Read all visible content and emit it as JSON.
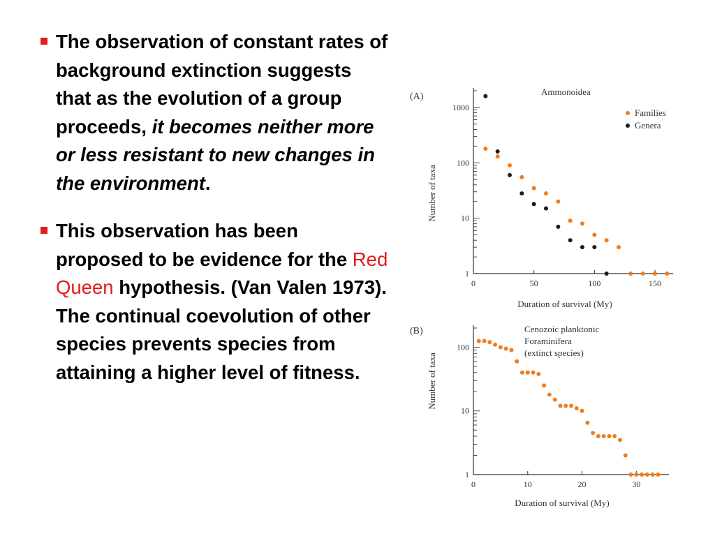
{
  "bullets": [
    {
      "parts": [
        {
          "text": "The observation of constant rates of  background extinction suggests that as the evolution of a group proceeds, "
        },
        {
          "text": "it becomes neither more or less resistant to new changes in the environment",
          "italic": true
        },
        {
          "text": "."
        }
      ]
    },
    {
      "parts": [
        {
          "text": "This observation has been proposed to be evidence for the "
        },
        {
          "text": "Red Queen",
          "color": "#e31b1b",
          "bold": false
        },
        {
          "text": " hypothesis. (Van Valen 1973).  The continual coevolution of other species prevents species from attaining a higher level of fitness."
        }
      ]
    }
  ],
  "chart_data": [
    {
      "type": "scatter",
      "panel_label": "(A)",
      "title": "Ammonoidea",
      "xlabel": "Duration of survival (My)",
      "ylabel": "Number of taxa",
      "xlim": [
        0,
        165
      ],
      "ylim": [
        1,
        2000
      ],
      "y_scale": "log",
      "x_ticks": [
        0,
        50,
        100,
        150
      ],
      "y_ticks": [
        1,
        10,
        100,
        1000
      ],
      "legend_position": "top-right",
      "series": [
        {
          "name": "Families",
          "color": "#f07c1c",
          "x": [
            10,
            20,
            30,
            40,
            50,
            60,
            70,
            80,
            90,
            100,
            110,
            120,
            130,
            140,
            150,
            160
          ],
          "y": [
            180,
            130,
            90,
            55,
            35,
            28,
            20,
            9,
            8,
            5,
            4,
            3,
            1,
            1,
            1,
            1
          ]
        },
        {
          "name": "Genera",
          "color": "#1a1a1a",
          "x": [
            10,
            20,
            30,
            40,
            50,
            60,
            70,
            80,
            90,
            100,
            110
          ],
          "y": [
            1600,
            160,
            60,
            28,
            18,
            15,
            7,
            4,
            3,
            3,
            1
          ]
        }
      ]
    },
    {
      "type": "scatter",
      "panel_label": "(B)",
      "title": "Cenozoic planktonic Foraminifera (extinct species)",
      "title_lines": [
        "Cenozoic planktonic",
        "Foraminifera",
        "(extinct species)"
      ],
      "xlabel": "Duration of survival (My)",
      "ylabel": "Number of taxa",
      "xlim": [
        0,
        36
      ],
      "ylim": [
        1,
        200
      ],
      "y_scale": "log",
      "x_ticks": [
        0,
        10,
        20,
        30
      ],
      "y_ticks": [
        1,
        10,
        100
      ],
      "series": [
        {
          "color": "#f07c1c",
          "x": [
            1,
            2,
            3,
            4,
            5,
            6,
            7,
            8,
            9,
            10,
            11,
            12,
            13,
            14,
            15,
            16,
            17,
            18,
            19,
            20,
            21,
            22,
            23,
            24,
            25,
            26,
            27,
            28,
            29,
            30,
            31,
            32,
            33,
            34
          ],
          "y": [
            125,
            125,
            120,
            110,
            100,
            95,
            90,
            60,
            40,
            40,
            40,
            38,
            25,
            18,
            15,
            12,
            12,
            12,
            11,
            10,
            6.5,
            4.5,
            4,
            4,
            4,
            4,
            3.5,
            2,
            1,
            1,
            1,
            1,
            1,
            1
          ]
        }
      ]
    }
  ]
}
